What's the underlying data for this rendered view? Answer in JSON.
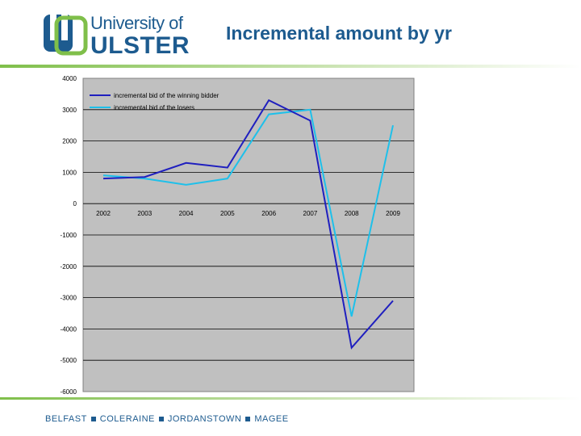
{
  "header": {
    "logo_line1": "University of",
    "logo_line2": "ULSTER",
    "title": "Incremental amount by yr"
  },
  "footer": {
    "campuses": [
      "BELFAST",
      "COLERAINE",
      "JORDANSTOWN",
      "MAGEE"
    ]
  },
  "colors": {
    "brand": "#1d5b8f",
    "accent_green": "#7fbf4a",
    "plot_bg": "#c0c0c0",
    "winning_line": "#1f1fbf",
    "losers_line": "#1ec0ea"
  },
  "chart_data": {
    "type": "line",
    "title": "",
    "xlabel": "",
    "ylabel": "",
    "categories": [
      "2002",
      "2003",
      "2004",
      "2005",
      "2006",
      "2007",
      "2008",
      "2009"
    ],
    "ylim": [
      -6000,
      4000
    ],
    "yticks": [
      4000,
      3000,
      2000,
      1000,
      0,
      -1000,
      -2000,
      -3000,
      -4000,
      -5000,
      -6000
    ],
    "ytick_labels": [
      "4000",
      "3000",
      "2000",
      "1000",
      "0",
      "-1000",
      "-2000",
      "-3000",
      "-4000",
      "-5000",
      "-6000"
    ],
    "grid": "horizontal",
    "legend_position": "top-left",
    "series": [
      {
        "name": "incremental bid of the winning bidder",
        "values": [
          800,
          850,
          1300,
          1150,
          3300,
          2650,
          -4600,
          -3100
        ]
      },
      {
        "name": "incremental bid of the losers",
        "values": [
          900,
          800,
          600,
          800,
          2850,
          3000,
          -3600,
          2500
        ]
      }
    ]
  }
}
